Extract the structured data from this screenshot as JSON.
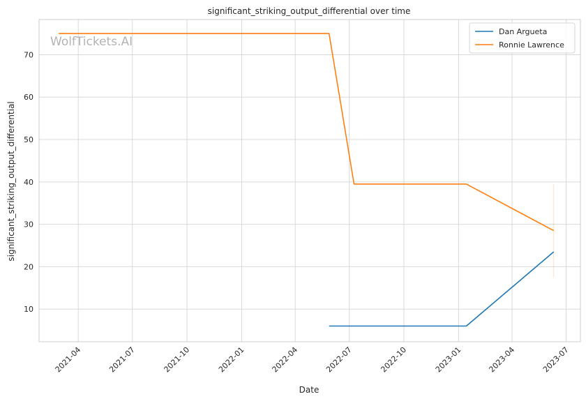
{
  "chart_data": {
    "type": "line",
    "title": "significant_striking_output_differential over time",
    "xlabel": "Date",
    "ylabel": "significant_striking_output_differential",
    "watermark": "WolfTickets.AI",
    "x_ticks": [
      "2021-04",
      "2021-07",
      "2021-10",
      "2022-01",
      "2022-04",
      "2022-07",
      "2022-10",
      "2023-01",
      "2023-04",
      "2023-07"
    ],
    "y_ticks": [
      10,
      20,
      30,
      40,
      50,
      60,
      70
    ],
    "xlim": [
      "2021-01-25",
      "2023-07-25"
    ],
    "ylim": [
      2.3,
      78.3
    ],
    "grid": true,
    "legend_position": "top-right",
    "series": [
      {
        "name": "Dan Argueta",
        "color": "#1f77b4",
        "x": [
          "2022-05-28",
          "2023-01-14",
          "2023-06-10"
        ],
        "y": [
          6,
          6,
          23.5
        ]
      },
      {
        "name": "Ronnie Lawrence",
        "color": "#ff7f0e",
        "x": [
          "2021-02-27",
          "2022-05-28",
          "2022-07-09",
          "2023-01-14",
          "2023-06-10"
        ],
        "y": [
          75,
          75,
          39.5,
          39.5,
          28.5
        ],
        "error_band": {
          "x": "2023-06-10",
          "low": 17.5,
          "high": 39.5
        }
      }
    ]
  }
}
